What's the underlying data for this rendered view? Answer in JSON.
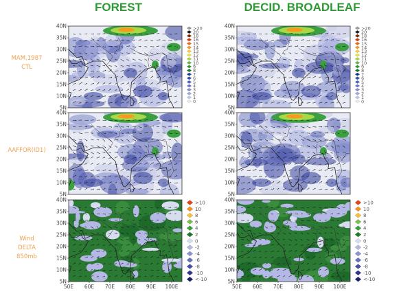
{
  "columns": [
    "FOREST",
    "DECID. BROADLEAF"
  ],
  "rows": [
    {
      "label": [
        "MAM,1987",
        "CTL"
      ]
    },
    {
      "label": [
        "AAFFOR(ID1)"
      ]
    },
    {
      "label": [
        "Wind",
        "DELTA",
        "850mb"
      ]
    }
  ],
  "lat_ticks": [
    "5N",
    "10N",
    "15N",
    "20N",
    "25N",
    "30N",
    "35N",
    "40N"
  ],
  "lon_ticks": [
    "50E",
    "60E",
    "70E",
    "80E",
    "90E",
    "100E"
  ],
  "speed_scale": {
    "labels": [
      ">20",
      "20",
      "18",
      "16",
      "15",
      "14",
      "13",
      "12",
      "11",
      "10",
      "9",
      "8",
      "7",
      "6",
      "5",
      "4",
      "3",
      "2",
      "1",
      "0"
    ],
    "colors": [
      "#9a9a9a",
      "#1a1a1a",
      "#7a2a10",
      "#d83a10",
      "#f06a10",
      "#f89a20",
      "#fccc30",
      "#e8e43a",
      "#a8d848",
      "#5cbc4a",
      "#2e9a34",
      "#167a26",
      "#223a8c",
      "#2f4fa8",
      "#4a64bc",
      "#6478c8",
      "#8090d2",
      "#a0aade",
      "#c2c8ea",
      "#e6e8f4"
    ]
  },
  "delta_scale": {
    "labels": [
      ">10",
      "10",
      "8",
      "6",
      "4",
      "2",
      "0",
      "-2",
      "-4",
      "-6",
      "-8",
      "-10",
      "<-10"
    ],
    "colors": [
      "#e04818",
      "#f89020",
      "#f8c040",
      "#7cc050",
      "#3aa040",
      "#1e7a2a",
      "#d8dcf0",
      "#b4b8e4",
      "#8c92d2",
      "#6670bc",
      "#4650a4",
      "#2e368c",
      "#1c2070"
    ]
  }
}
